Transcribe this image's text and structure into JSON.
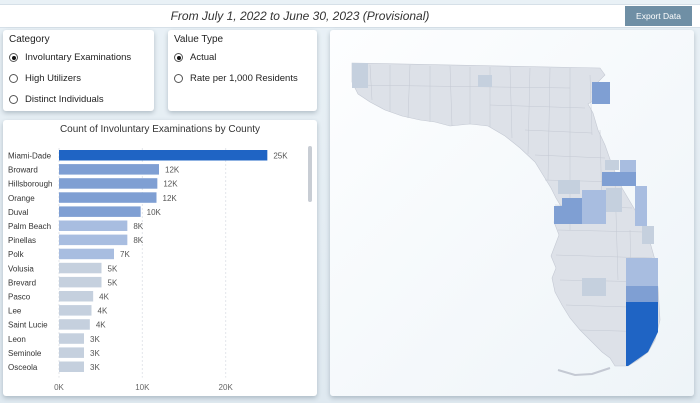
{
  "header": {
    "title": "From July 1, 2022 to June 30, 2023 (Provisional)",
    "export_label": "Export Data"
  },
  "category": {
    "label": "Category",
    "options": [
      "Involuntary Examinations",
      "High Utilizers",
      "Distinct Individuals"
    ],
    "selected": "Involuntary Examinations"
  },
  "value_type": {
    "label": "Value Type",
    "options": [
      "Actual",
      "Rate per 1,000 Residents"
    ],
    "selected": "Actual"
  },
  "colors": {
    "highlight_bar": "#1f64c4",
    "bar_dark": "#7f9fd3",
    "bar_mid": "#a8bde0",
    "bar_light": "#c5d0de",
    "map_base": "#dde1e8"
  },
  "chart_data": {
    "type": "bar",
    "orientation": "horizontal",
    "title": "Count of Involuntary Examinations by County",
    "categories": [
      "Miami-Dade",
      "Broward",
      "Hillsborough",
      "Orange",
      "Duval",
      "Palm Beach",
      "Pinellas",
      "Polk",
      "Volusia",
      "Brevard",
      "Pasco",
      "Lee",
      "Saint Lucie",
      "Leon",
      "Seminole",
      "Osceola"
    ],
    "values": [
      25000,
      12000,
      11800,
      11700,
      9800,
      8200,
      8200,
      6600,
      5100,
      5100,
      4100,
      3900,
      3700,
      3000,
      3000,
      3000
    ],
    "data_labels": [
      "25K",
      "12K",
      "12K",
      "12K",
      "10K",
      "8K",
      "8K",
      "7K",
      "5K",
      "5K",
      "4K",
      "4K",
      "4K",
      "3K",
      "3K",
      "3K"
    ],
    "x_ticks": [
      "0K",
      "10K",
      "20K"
    ],
    "xlim": [
      0,
      27000
    ],
    "grid": true
  }
}
